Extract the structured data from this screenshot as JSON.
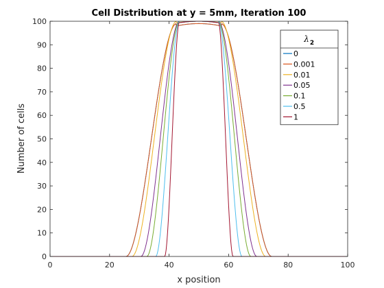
{
  "chart_data": {
    "type": "line",
    "title": "Cell Distribution at y = 5mm, Iteration 100",
    "xlabel": "x position",
    "ylabel": "Number of cells",
    "xlim": [
      0,
      100
    ],
    "ylim": [
      0,
      100
    ],
    "xticks": [
      "0",
      "20",
      "40",
      "60",
      "80",
      "100"
    ],
    "yticks": [
      "0",
      "10",
      "20",
      "30",
      "40",
      "50",
      "60",
      "70",
      "80",
      "90",
      "100"
    ],
    "grid": false,
    "legend": {
      "title_symbol": "λ",
      "title_subscript": "2",
      "position": "top-right"
    },
    "series": [
      {
        "name": "0",
        "color": "#0072BD",
        "rise_start": 25.5,
        "plateau_start": 42.5,
        "plateau_end": 57.5,
        "fall_end": 74.5,
        "peak": 99
      },
      {
        "name": "0.001",
        "color": "#D95319",
        "rise_start": 25.5,
        "plateau_start": 42.5,
        "plateau_end": 57.5,
        "fall_end": 74.5,
        "peak": 99
      },
      {
        "name": "0.01",
        "color": "#EDB120",
        "rise_start": 27.5,
        "plateau_start": 42.5,
        "plateau_end": 57.5,
        "fall_end": 72.5,
        "peak": 100
      },
      {
        "name": "0.05",
        "color": "#7E2F8E",
        "rise_start": 30.5,
        "plateau_start": 43.5,
        "plateau_end": 56.5,
        "fall_end": 69.5,
        "peak": 100
      },
      {
        "name": "0.1",
        "color": "#77AC30",
        "rise_start": 32.5,
        "plateau_start": 43.5,
        "plateau_end": 56.5,
        "fall_end": 67.5,
        "peak": 100
      },
      {
        "name": "0.5",
        "color": "#4DBEEE",
        "rise_start": 35.5,
        "plateau_start": 43.5,
        "plateau_end": 56.5,
        "fall_end": 64.5,
        "peak": 100
      },
      {
        "name": "1",
        "color": "#A2142F",
        "rise_start": 38.5,
        "plateau_start": 43.5,
        "plateau_end": 56.5,
        "fall_end": 61.5,
        "peak": 100
      }
    ]
  }
}
